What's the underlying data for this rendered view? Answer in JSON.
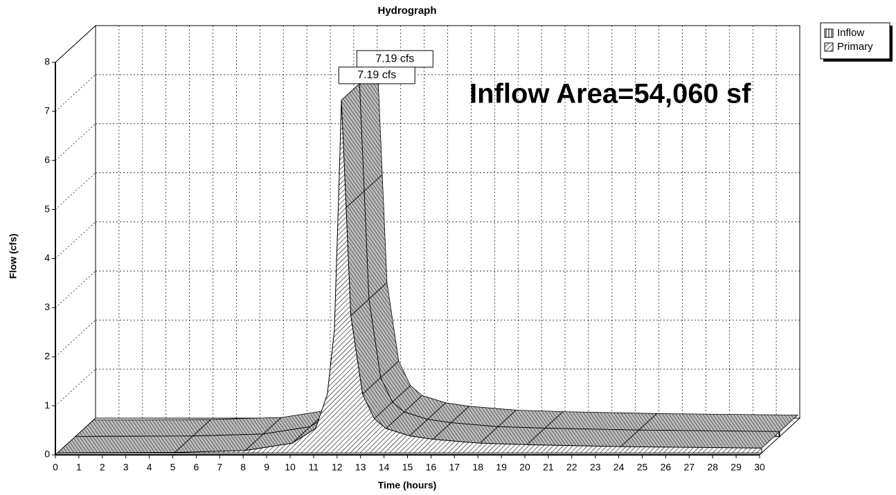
{
  "chart_data": {
    "type": "area3d",
    "title": "Hydrograph",
    "x_label": "Time (hours)",
    "y_label": "Flow (cfs)",
    "annotation": "Inflow Area=54,060 sf",
    "xlim": [
      0,
      30
    ],
    "xticks": [
      0,
      1,
      2,
      3,
      4,
      5,
      6,
      7,
      8,
      9,
      10,
      11,
      12,
      13,
      14,
      15,
      16,
      17,
      18,
      19,
      20,
      21,
      22,
      23,
      24,
      25,
      26,
      27,
      28,
      29,
      30
    ],
    "ylim": [
      0,
      8
    ],
    "yticks": [
      0,
      1,
      2,
      3,
      4,
      5,
      6,
      7,
      8
    ],
    "grid": true,
    "legend": "upper right",
    "x": [
      0,
      5,
      8,
      10,
      11,
      11.5,
      11.8,
      12,
      12.1,
      12.3,
      12.5,
      13,
      13.5,
      14,
      15,
      16,
      18,
      20,
      24,
      30
    ],
    "series": [
      {
        "name": "Inflow",
        "color": "#000000",
        "pattern": "vertical",
        "values": [
          0,
          0.01,
          0.05,
          0.2,
          0.5,
          1.2,
          2.5,
          5.5,
          7.19,
          5.0,
          2.8,
          1.2,
          0.7,
          0.5,
          0.35,
          0.28,
          0.2,
          0.17,
          0.13,
          0.1
        ],
        "value_labels": [
          null,
          null,
          null,
          null,
          null,
          null,
          null,
          null,
          "7.19 cfs",
          null,
          null,
          null,
          null,
          null,
          null,
          null,
          null,
          null,
          null,
          null
        ]
      },
      {
        "name": "Primary",
        "color": "#000000",
        "pattern": "diagonal",
        "values": [
          0,
          0.01,
          0.05,
          0.2,
          0.5,
          1.2,
          2.5,
          5.5,
          7.19,
          5.0,
          2.8,
          1.2,
          0.7,
          0.5,
          0.35,
          0.28,
          0.2,
          0.17,
          0.13,
          0.1
        ],
        "value_labels": [
          null,
          null,
          null,
          null,
          null,
          null,
          null,
          null,
          "7.19 cfs",
          null,
          null,
          null,
          null,
          null,
          null,
          null,
          null,
          null,
          null,
          null
        ]
      }
    ]
  }
}
